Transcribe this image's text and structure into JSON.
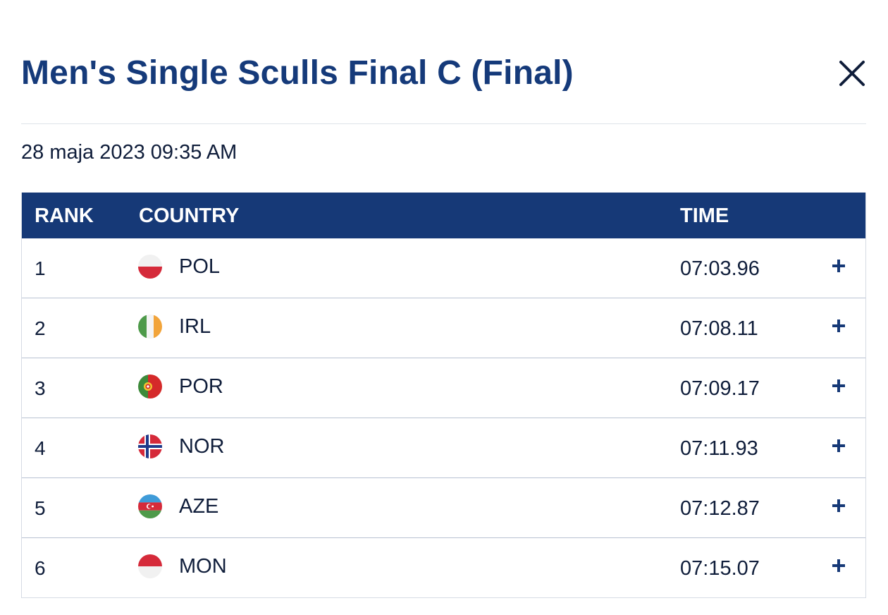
{
  "modal": {
    "title": "Men's Single Sculls Final C (Final)",
    "close_icon": "close-icon",
    "date": "28 maja 2023 09:35 AM"
  },
  "table": {
    "headers": {
      "rank": "RANK",
      "country": "COUNTRY",
      "time": "TIME"
    },
    "rows": [
      {
        "rank": "1",
        "country": "POL",
        "flag_icon": "poland-flag-icon",
        "time": "07:03.96",
        "expand_icon": "plus-icon"
      },
      {
        "rank": "2",
        "country": "IRL",
        "flag_icon": "ireland-flag-icon",
        "time": "07:08.11",
        "expand_icon": "plus-icon"
      },
      {
        "rank": "3",
        "country": "POR",
        "flag_icon": "portugal-flag-icon",
        "time": "07:09.17",
        "expand_icon": "plus-icon"
      },
      {
        "rank": "4",
        "country": "NOR",
        "flag_icon": "norway-flag-icon",
        "time": "07:11.93",
        "expand_icon": "plus-icon"
      },
      {
        "rank": "5",
        "country": "AZE",
        "flag_icon": "azerbaijan-flag-icon",
        "time": "07:12.87",
        "expand_icon": "plus-icon"
      },
      {
        "rank": "6",
        "country": "MON",
        "flag_icon": "monaco-flag-icon",
        "time": "07:15.07",
        "expand_icon": "plus-icon"
      }
    ]
  },
  "colors": {
    "title": "#153a7a",
    "header_bg": "#163977",
    "header_text": "#ffffff",
    "body_text": "#0f1d3a",
    "row_divider": "#b9c2d2",
    "plus_icon": "#163977"
  }
}
